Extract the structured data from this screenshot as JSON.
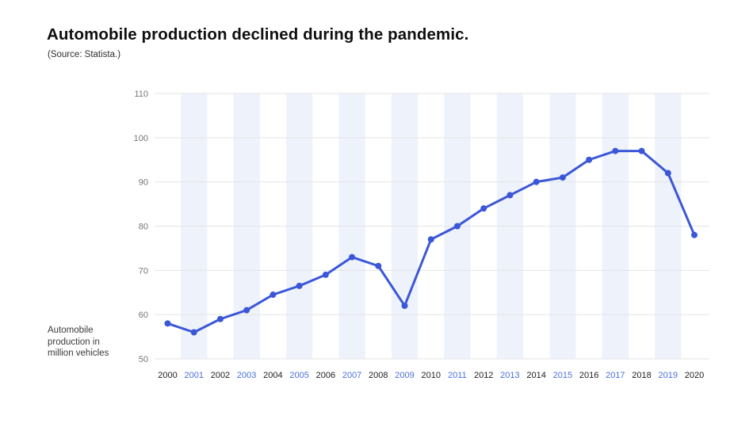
{
  "header": {
    "title": "Automobile production declined during the pandemic.",
    "source": "(Source: Statista.)"
  },
  "chart_data": {
    "type": "line",
    "title": "Automobile production declined during the pandemic.",
    "subtitle": "(Source: Statista.)",
    "categories": [
      "2000",
      "2001",
      "2002",
      "2003",
      "2004",
      "2005",
      "2006",
      "2007",
      "2008",
      "2009",
      "2010",
      "2011",
      "2012",
      "2013",
      "2014",
      "2015",
      "2016",
      "2017",
      "2018",
      "2019",
      "2020"
    ],
    "values": [
      58,
      56,
      59,
      61,
      64.5,
      66.5,
      69,
      73,
      71,
      62,
      77,
      80,
      84,
      87,
      90,
      91,
      95,
      97,
      97,
      92,
      78
    ],
    "series_name": "Automobile production in million vehicles",
    "ylabel": "Automobile production in million vehicles",
    "ylabel_lines": [
      "Automobile",
      "production in",
      "million vehicles"
    ],
    "yticks": [
      50,
      60,
      70,
      80,
      90,
      100,
      110
    ],
    "ylim": [
      50,
      110
    ],
    "xlabel": "",
    "grid": "horizontal gridlines on, alternating vertical bands on odd years",
    "legend": "none",
    "colors": {
      "line": "#3b57d8",
      "marker": "#3b57d8",
      "band": "#eef2fb",
      "grid": "#e4e4e4",
      "ytick": "#757575",
      "xtick_even": "#1f1f1f",
      "xtick_odd": "#4a70df",
      "title": "#0f0f0f",
      "source": "#2e2e2e",
      "background": "#ffffff"
    }
  }
}
